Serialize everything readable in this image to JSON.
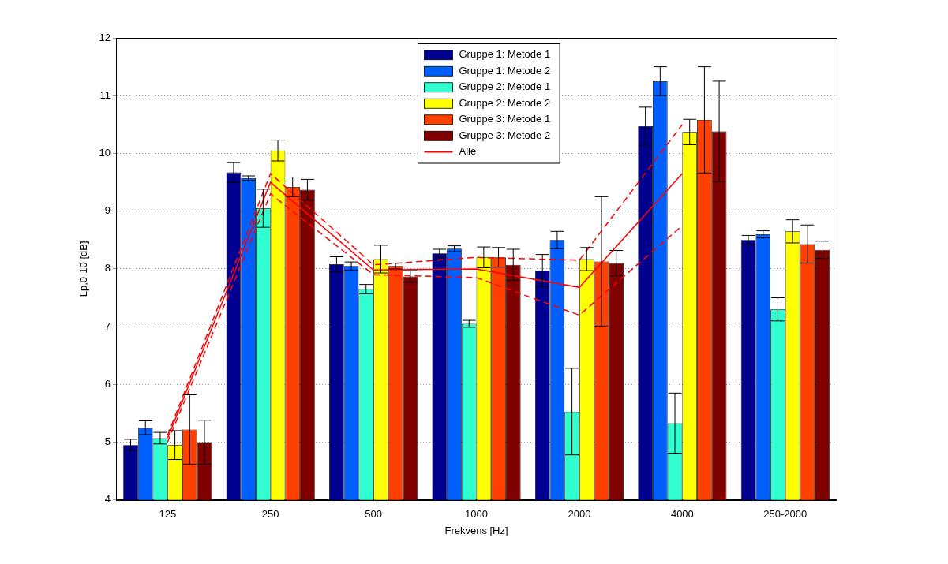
{
  "chart_data": {
    "type": "bar",
    "x_label": "Frekvens [Hz]",
    "y_label": "Lp,0-10 [dB]",
    "categories": [
      "125",
      "250",
      "500",
      "1000",
      "2000",
      "4000",
      "250-2000"
    ],
    "ylim": [
      4,
      12
    ],
    "yticks": [
      4,
      5,
      6,
      7,
      8,
      9,
      10,
      11,
      12
    ],
    "grid": true,
    "legend": "top",
    "series": [
      {
        "name": "Gruppe 1: Metode 1",
        "color": "#000090",
        "values": [
          4.95,
          9.67,
          8.08,
          8.27,
          7.97,
          10.47,
          8.5
        ],
        "errors": [
          0.1,
          0.17,
          0.13,
          0.07,
          0.28,
          0.33,
          0.08
        ]
      },
      {
        "name": "Gruppe 1: Metode 2",
        "color": "#0060ff",
        "values": [
          5.25,
          9.57,
          8.05,
          8.35,
          8.5,
          11.25,
          8.6
        ],
        "errors": [
          0.12,
          0.04,
          0.07,
          0.05,
          0.15,
          0.25,
          0.06
        ]
      },
      {
        "name": "Gruppe 2: Metode 1",
        "color": "#30ffd0",
        "values": [
          5.07,
          9.05,
          7.65,
          7.05,
          5.53,
          5.33,
          7.3
        ],
        "errors": [
          0.1,
          0.33,
          0.08,
          0.06,
          0.75,
          0.52,
          0.2
        ]
      },
      {
        "name": "Gruppe 2: Metode 2",
        "color": "#ffff00",
        "values": [
          4.95,
          10.05,
          8.17,
          8.2,
          8.17,
          10.37,
          8.65
        ],
        "errors": [
          0.25,
          0.18,
          0.24,
          0.18,
          0.2,
          0.22,
          0.2
        ]
      },
      {
        "name": "Gruppe 3: Metode 1",
        "color": "#ff4000",
        "values": [
          5.22,
          9.42,
          8.05,
          8.2,
          8.13,
          10.58,
          8.43
        ],
        "errors": [
          0.6,
          0.17,
          0.05,
          0.17,
          1.12,
          0.92,
          0.33
        ]
      },
      {
        "name": "Gruppe 3: Metode 2",
        "color": "#800000",
        "values": [
          5.0,
          9.37,
          7.87,
          8.07,
          8.1,
          10.38,
          8.33
        ],
        "errors": [
          0.38,
          0.18,
          0.1,
          0.27,
          0.22,
          0.87,
          0.15
        ]
      },
      {
        "name": "Alle",
        "type": "line",
        "color": "#ff0000",
        "line_style": "solid",
        "values": [
          5.07,
          9.5,
          7.98,
          8.0,
          7.68,
          9.65,
          null
        ],
        "lower": [
          5.0,
          9.3,
          7.9,
          7.85,
          7.2,
          8.75,
          null
        ],
        "upper": [
          5.12,
          9.65,
          8.07,
          8.2,
          8.15,
          10.5,
          null
        ]
      }
    ]
  }
}
